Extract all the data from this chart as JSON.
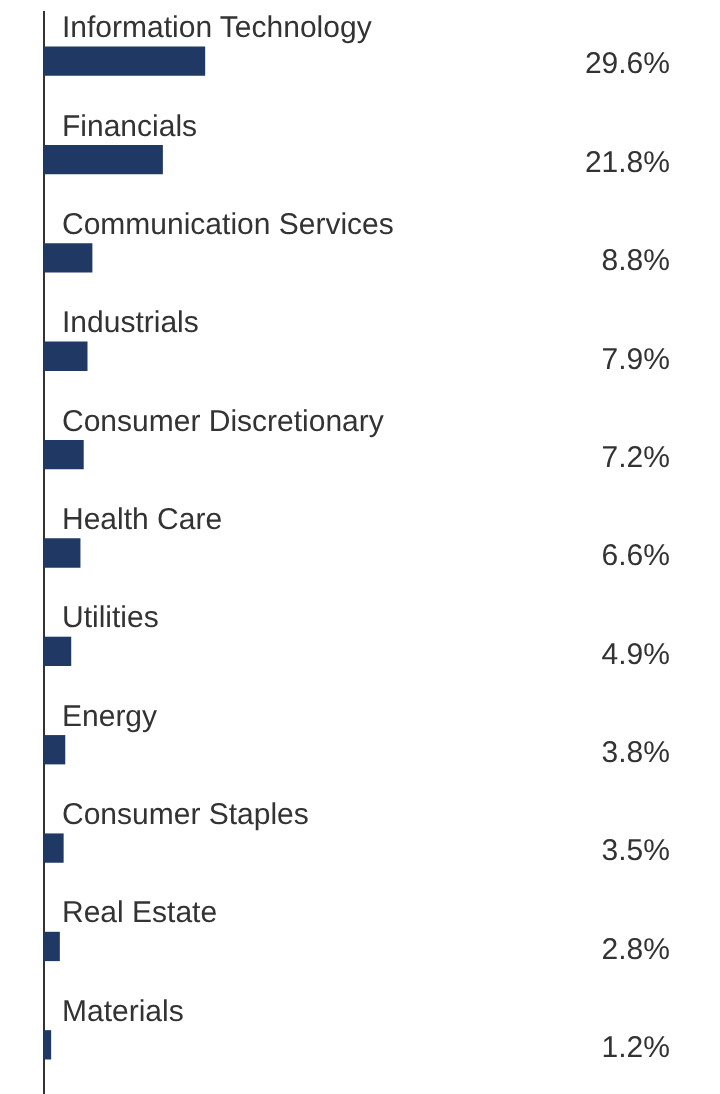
{
  "chart_data": {
    "type": "bar",
    "orientation": "horizontal",
    "categories": [
      "Information Technology",
      "Financials",
      "Communication Services",
      "Industrials",
      "Consumer Discretionary",
      "Health Care",
      "Utilities",
      "Energy",
      "Consumer Staples",
      "Real Estate",
      "Materials"
    ],
    "values": [
      29.6,
      21.8,
      8.8,
      7.9,
      7.2,
      6.6,
      4.9,
      3.8,
      3.5,
      2.8,
      1.2
    ],
    "value_labels": [
      "29.6%",
      "21.8%",
      "8.8%",
      "7.9%",
      "7.2%",
      "6.6%",
      "4.9%",
      "3.8%",
      "3.5%",
      "2.8%",
      "1.2%"
    ],
    "color": "#1f3864"
  }
}
